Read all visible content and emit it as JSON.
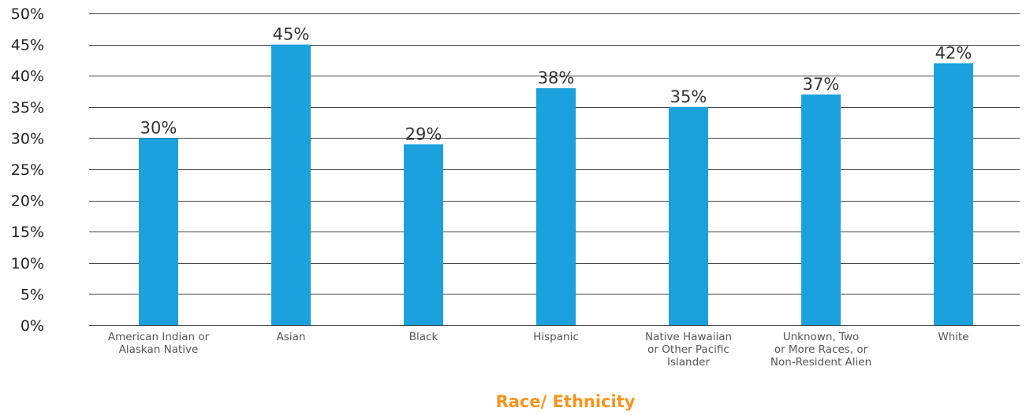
{
  "chart_data": {
    "type": "bar",
    "title": "",
    "xlabel": "Race/ Ethnicity",
    "ylabel": "",
    "ylim": [
      0,
      50
    ],
    "ytick_step": 5,
    "ytick_labels": [
      "0%",
      "5%",
      "10%",
      "15%",
      "20%",
      "25%",
      "30%",
      "35%",
      "40%",
      "45%",
      "50%"
    ],
    "categories": [
      "American Indian or Alaskan Native",
      "Asian",
      "Black",
      "Hispanic",
      "Native Hawaiian or Other Pacific Islander",
      "Unknown, Two or More Races, or Non-Resident Alien",
      "White"
    ],
    "category_label_lines": [
      [
        "American Indian or",
        "Alaskan Native"
      ],
      [
        "Asian"
      ],
      [
        "Black"
      ],
      [
        "Hispanic"
      ],
      [
        "Native Hawaiian",
        "or Other Pacific",
        "Islander"
      ],
      [
        "Unknown, Two",
        "or More Races, or",
        "Non-Resident Alien"
      ],
      [
        "White"
      ]
    ],
    "values": [
      30,
      45,
      29,
      38,
      35,
      37,
      42
    ],
    "data_labels": [
      "30%",
      "45%",
      "29%",
      "38%",
      "35%",
      "37%",
      "42%"
    ],
    "grid": true,
    "legend": "none",
    "colors": {
      "bar": "#1ba1dd",
      "xlabel": "#f7941d",
      "grid": "#444444"
    }
  }
}
